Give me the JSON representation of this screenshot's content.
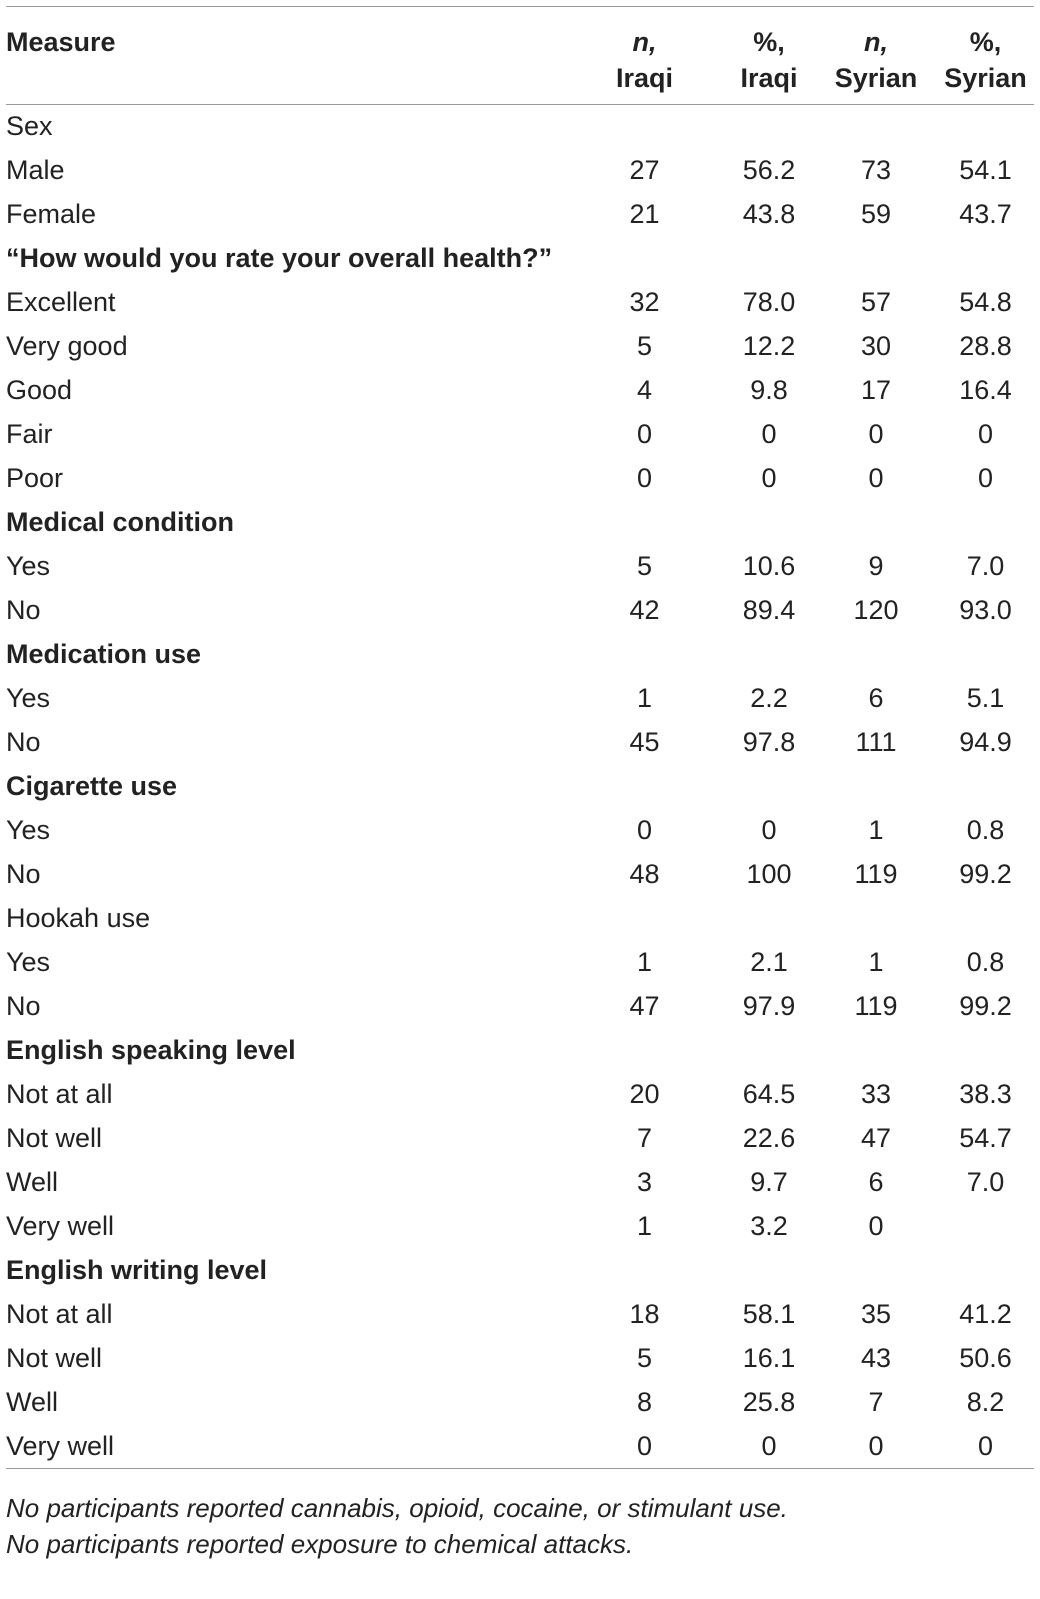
{
  "table": {
    "headers": [
      {
        "line1": "Measure",
        "line2": "",
        "italic_line1": false
      },
      {
        "line1": "n,",
        "line2": "Iraqi",
        "italic_line1": true
      },
      {
        "line1": "%,",
        "line2": "Iraqi",
        "italic_line1": false
      },
      {
        "line1": "n,",
        "line2": "Syrian",
        "italic_line1": true
      },
      {
        "line1": "%,",
        "line2": "Syrian",
        "italic_line1": false
      }
    ],
    "rows": [
      {
        "label": "Sex",
        "bold": false,
        "values": [
          "",
          "",
          "",
          ""
        ]
      },
      {
        "label": "Male",
        "bold": false,
        "values": [
          "27",
          "56.2",
          "73",
          "54.1"
        ]
      },
      {
        "label": "Female",
        "bold": false,
        "values": [
          "21",
          "43.8",
          "59",
          "43.7"
        ]
      },
      {
        "label": "“How would you rate your overall health?”",
        "bold": true,
        "values": [
          "",
          "",
          "",
          ""
        ]
      },
      {
        "label": "Excellent",
        "bold": false,
        "values": [
          "32",
          "78.0",
          "57",
          "54.8"
        ]
      },
      {
        "label": "Very good",
        "bold": false,
        "values": [
          "5",
          "12.2",
          "30",
          "28.8"
        ]
      },
      {
        "label": "Good",
        "bold": false,
        "values": [
          "4",
          "9.8",
          "17",
          "16.4"
        ]
      },
      {
        "label": "Fair",
        "bold": false,
        "values": [
          "0",
          "0",
          "0",
          "0"
        ]
      },
      {
        "label": "Poor",
        "bold": false,
        "values": [
          "0",
          "0",
          "0",
          "0"
        ]
      },
      {
        "label": "Medical condition",
        "bold": true,
        "values": [
          "",
          "",
          "",
          ""
        ]
      },
      {
        "label": "Yes",
        "bold": false,
        "values": [
          "5",
          "10.6",
          "9",
          "7.0"
        ]
      },
      {
        "label": "No",
        "bold": false,
        "values": [
          "42",
          "89.4",
          "120",
          "93.0"
        ]
      },
      {
        "label": "Medication use",
        "bold": true,
        "values": [
          "",
          "",
          "",
          ""
        ]
      },
      {
        "label": "Yes",
        "bold": false,
        "values": [
          "1",
          "2.2",
          "6",
          "5.1"
        ]
      },
      {
        "label": "No",
        "bold": false,
        "values": [
          "45",
          "97.8",
          "111",
          "94.9"
        ]
      },
      {
        "label": "Cigarette use",
        "bold": true,
        "values": [
          "",
          "",
          "",
          ""
        ]
      },
      {
        "label": "Yes",
        "bold": false,
        "values": [
          "0",
          "0",
          "1",
          "0.8"
        ]
      },
      {
        "label": "No",
        "bold": false,
        "values": [
          "48",
          "100",
          "119",
          "99.2"
        ]
      },
      {
        "label": "Hookah use",
        "bold": false,
        "values": [
          "",
          "",
          "",
          ""
        ]
      },
      {
        "label": "Yes",
        "bold": false,
        "values": [
          "1",
          "2.1",
          "1",
          "0.8"
        ]
      },
      {
        "label": "No",
        "bold": false,
        "values": [
          "47",
          "97.9",
          "119",
          "99.2"
        ]
      },
      {
        "label": "English speaking level",
        "bold": true,
        "values": [
          "",
          "",
          "",
          ""
        ]
      },
      {
        "label": "Not at all",
        "bold": false,
        "values": [
          "20",
          "64.5",
          "33",
          "38.3"
        ]
      },
      {
        "label": "Not well",
        "bold": false,
        "values": [
          "7",
          "22.6",
          "47",
          "54.7"
        ]
      },
      {
        "label": "Well",
        "bold": false,
        "values": [
          "3",
          "9.7",
          "6",
          "7.0"
        ]
      },
      {
        "label": "Very well",
        "bold": false,
        "values": [
          "1",
          "3.2",
          "0",
          ""
        ]
      },
      {
        "label": "English writing level",
        "bold": true,
        "values": [
          "",
          "",
          "",
          ""
        ]
      },
      {
        "label": "Not at all",
        "bold": false,
        "values": [
          "18",
          "58.1",
          "35",
          "41.2"
        ]
      },
      {
        "label": "Not well",
        "bold": false,
        "values": [
          "5",
          "16.1",
          "43",
          "50.6"
        ]
      },
      {
        "label": "Well",
        "bold": false,
        "values": [
          "8",
          "25.8",
          "7",
          "8.2"
        ]
      },
      {
        "label": "Very well",
        "bold": false,
        "values": [
          "0",
          "0",
          "0",
          "0"
        ]
      }
    ]
  },
  "footnotes": [
    "No participants reported cannabis, opioid, cocaine, or stimulant use.",
    "No participants reported exposure to chemical attacks."
  ]
}
